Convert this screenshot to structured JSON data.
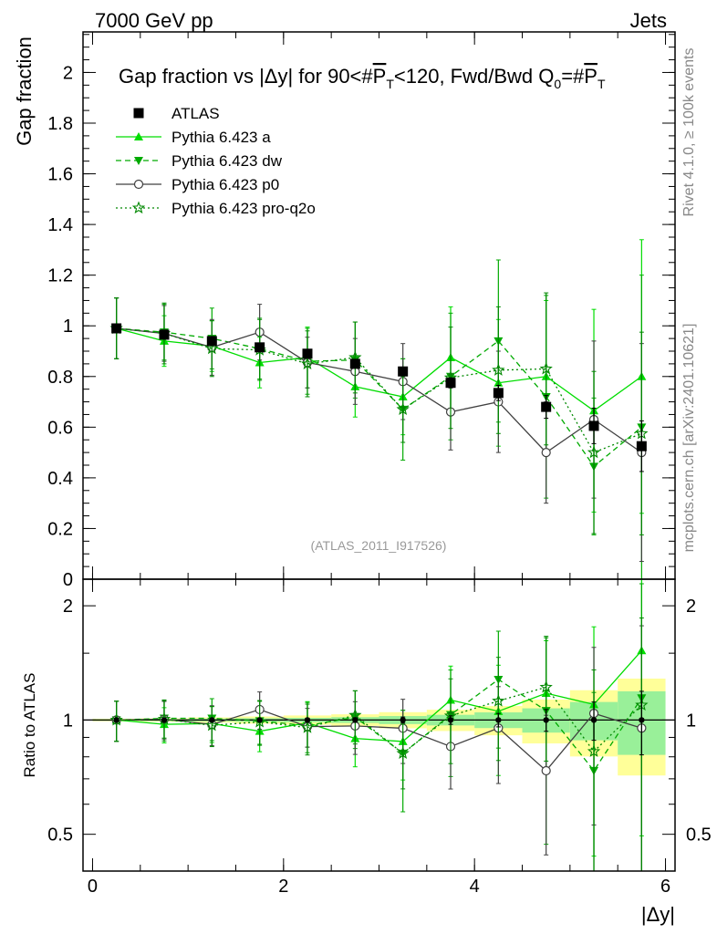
{
  "header": {
    "left": "7000 GeV pp",
    "right": "Jets"
  },
  "chart_data": {
    "type": "scatter",
    "title": "Gap fraction vs |Δy| for 90<#P̅T<120, Fwd/Bwd Q0=#P̅T",
    "title_parts": {
      "prefix": "Gap fraction vs |Δy| for 90<#",
      "pt1": "P",
      "pt1_sub": "T",
      "mid": "<120, Fwd/Bwd Q",
      "q_sub": "0",
      "eq": "=#",
      "pt2": "P",
      "pt2_sub": "T"
    },
    "xlabel": "|Δy|",
    "ylabel_main": "Gap fraction",
    "ylabel_ratio": "Ratio to ATLAS",
    "xlim": [
      -0.1,
      6.1
    ],
    "ylim_main": [
      0,
      2.16
    ],
    "ylim_ratio": [
      0.4,
      2.35
    ],
    "x_ticks": [
      0,
      2,
      4,
      6
    ],
    "x_tick_labels": [
      "0",
      "2",
      "4",
      "6"
    ],
    "y_ticks_main": [
      0,
      0.2,
      0.4,
      0.6,
      0.8,
      1,
      1.2,
      1.4,
      1.6,
      1.8,
      2
    ],
    "y_tick_labels_main": [
      "0",
      "0.2",
      "0.4",
      "0.6",
      "0.8",
      "1",
      "1.2",
      "1.4",
      "1.6",
      "1.8",
      "2"
    ],
    "y_ticks_ratio": [
      0.5,
      1,
      2
    ],
    "y_tick_labels_ratio": [
      "0.5",
      "1",
      "2"
    ],
    "watermark": "(ATLAS_2011_I917526)",
    "side_text_top": "Rivet 4.1.0, ≥ 100k events",
    "side_text_bottom": "mcplots.cern.ch [arXiv:2401.10621]",
    "x": [
      0.25,
      0.75,
      1.25,
      1.75,
      2.25,
      2.75,
      3.25,
      3.75,
      4.25,
      4.75,
      5.25,
      5.75
    ],
    "band_edges": [
      0,
      0.5,
      1,
      1.5,
      2,
      2.5,
      3,
      3.5,
      4,
      4.5,
      5,
      5.5,
      6
    ],
    "data": {
      "name": "ATLAS",
      "values": [
        0.99,
        0.965,
        0.94,
        0.915,
        0.89,
        0.85,
        0.82,
        0.775,
        0.735,
        0.68,
        0.605,
        0.525
      ],
      "errors": [
        0.005,
        0.006,
        0.007,
        0.008,
        0.01,
        0.012,
        0.015,
        0.02,
        0.03,
        0.045,
        0.07,
        0.1
      ],
      "band_inner": [
        0.005,
        0.006,
        0.008,
        0.01,
        0.012,
        0.015,
        0.02,
        0.025,
        0.035,
        0.05,
        0.07,
        0.1
      ],
      "band_outer": [
        0.008,
        0.01,
        0.015,
        0.02,
        0.025,
        0.03,
        0.04,
        0.05,
        0.065,
        0.09,
        0.12,
        0.15
      ]
    },
    "series": [
      {
        "name": "Pythia 6.423 a",
        "color": "#00dd00",
        "dash": "",
        "marker": "triangle-up",
        "values": [
          0.99,
          0.94,
          0.92,
          0.855,
          0.875,
          0.76,
          0.72,
          0.875,
          0.775,
          0.8,
          0.665,
          0.8
        ],
        "errors": [
          0.12,
          0.1,
          0.1,
          0.1,
          0.12,
          0.12,
          0.15,
          0.2,
          0.25,
          0.3,
          0.4,
          0.54
        ]
      },
      {
        "name": "Pythia 6.423 dw",
        "color": "#00aa00",
        "dash": "6,4",
        "marker": "triangle-down",
        "values": [
          0.99,
          0.975,
          0.95,
          0.91,
          0.86,
          0.865,
          0.67,
          0.8,
          0.94,
          0.72,
          0.445,
          0.6
        ],
        "errors": [
          0.12,
          0.11,
          0.12,
          0.12,
          0.13,
          0.15,
          0.2,
          0.25,
          0.32,
          0.4,
          0.27,
          0.6
        ]
      },
      {
        "name": "Pythia 6.423 p0",
        "color": "#404040",
        "dash": "",
        "marker": "circle-open",
        "values": [
          0.99,
          0.97,
          0.915,
          0.975,
          0.855,
          0.82,
          0.78,
          0.66,
          0.7,
          0.5,
          0.63,
          0.5
        ],
        "errors": [
          0.12,
          0.11,
          0.11,
          0.11,
          0.1,
          0.13,
          0.15,
          0.15,
          0.2,
          0.2,
          0.31,
          0.43
        ]
      },
      {
        "name": "Pythia 6.423 pro-q2o",
        "color": "#008800",
        "dash": "2,3",
        "marker": "star-open",
        "values": [
          0.99,
          0.97,
          0.91,
          0.905,
          0.85,
          0.875,
          0.67,
          0.795,
          0.825,
          0.83,
          0.5,
          0.575
        ],
        "errors": [
          0.12,
          0.12,
          0.11,
          0.12,
          0.13,
          0.14,
          0.13,
          0.2,
          0.25,
          0.3,
          0.32,
          0.4
        ]
      }
    ]
  }
}
